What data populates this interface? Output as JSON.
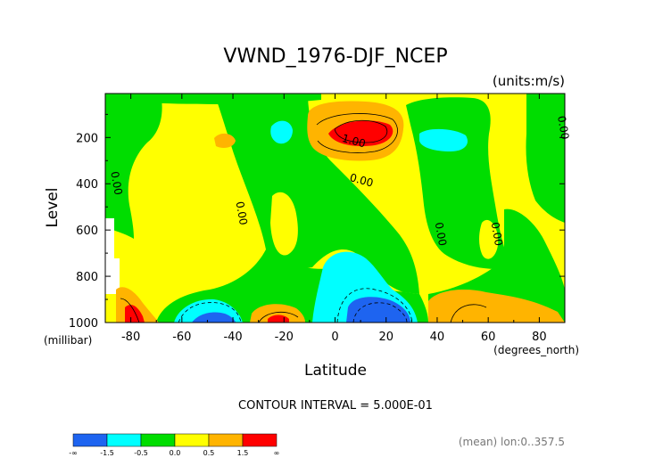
{
  "chart_data": {
    "type": "heatmap",
    "title": "VWND_1976-DJF_NCEP",
    "units_label": "(units:m/s)",
    "xlabel": "Latitude",
    "xunits_label": "(degrees_north)",
    "ylabel": "Level",
    "yunits_label": "(millibar)",
    "xlim": [
      -90,
      90
    ],
    "ylim": [
      1000,
      10
    ],
    "y_axis_inverted": true,
    "x_ticks": [
      -80,
      -60,
      -40,
      -20,
      0,
      20,
      40,
      60,
      80
    ],
    "y_ticks": [
      200,
      400,
      600,
      800,
      1000
    ],
    "contour_interval_text": "CONTOUR INTERVAL = 5.000E-01",
    "mean_text": "(mean) lon:0..357.5",
    "contour_labels": [
      {
        "text": "0.00",
        "x": -87,
        "y": 400
      },
      {
        "text": "0.00",
        "x": -38,
        "y": 530
      },
      {
        "text": "1.00",
        "x": 7,
        "y": 230
      },
      {
        "text": "0.00",
        "x": 10,
        "y": 400
      },
      {
        "text": "0.00",
        "x": 40,
        "y": 620
      },
      {
        "text": "0.00",
        "x": 62,
        "y": 620
      },
      {
        "text": "0.00",
        "x": 88,
        "y": 160
      }
    ],
    "colorbar": {
      "levels": [
        "-∞",
        "-1.5",
        "-0.5",
        "0.0",
        "0.5",
        "1.5",
        "∞"
      ],
      "colors": [
        "#1e64f0",
        "#00ffff",
        "#00dd00",
        "#ffff00",
        "#ffb400",
        "#ff0000"
      ]
    },
    "regions": [
      {
        "value_class": "red",
        "center": [
          10,
          150
        ],
        "extent": [
          18,
          50
        ]
      },
      {
        "value_class": "red",
        "center": [
          -82,
          965
        ],
        "extent": [
          5,
          50
        ]
      },
      {
        "value_class": "red",
        "center": [
          -22,
          990
        ],
        "extent": [
          6,
          20
        ]
      },
      {
        "value_class": "cyan",
        "center": [
          -22,
          160
        ],
        "extent": [
          5,
          60
        ]
      },
      {
        "value_class": "cyan",
        "center": [
          27,
          200
        ],
        "extent": [
          13,
          70
        ]
      },
      {
        "value_class": "cyan",
        "center": [
          12,
          900
        ],
        "extent": [
          20,
          160
        ]
      },
      {
        "value_class": "blue",
        "center": [
          14,
          960
        ],
        "extent": [
          15,
          90
        ]
      },
      {
        "value_class": "blue",
        "center": [
          -50,
          985
        ],
        "extent": [
          10,
          40
        ]
      }
    ]
  }
}
